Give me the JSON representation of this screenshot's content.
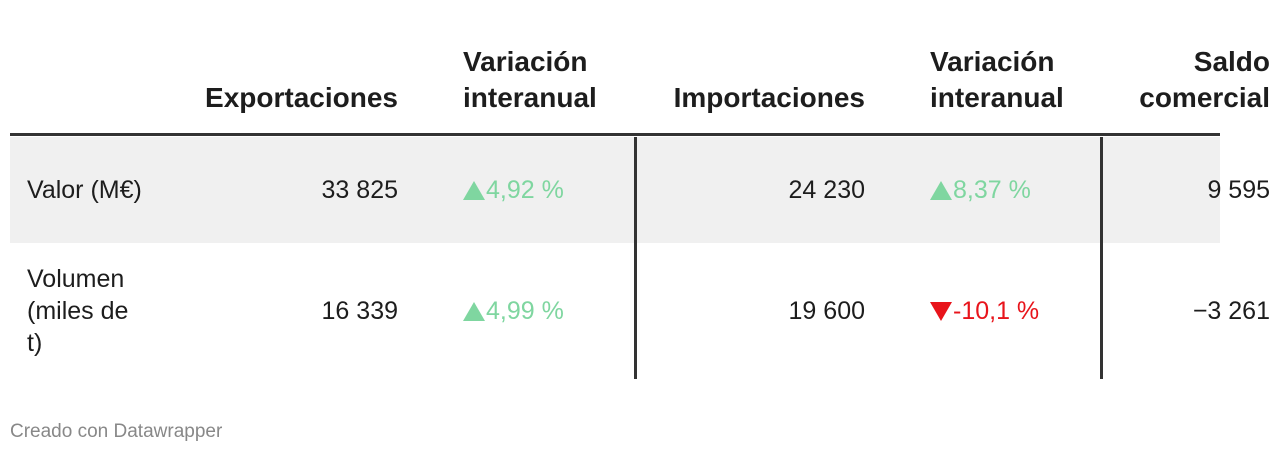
{
  "table": {
    "columns": [
      "Exportaciones",
      "Variación interanual",
      "Importaciones",
      "Variación interanual",
      "Saldo comercial"
    ],
    "rows": [
      {
        "label": "Valor (M€)",
        "cells": [
          "33 825",
          "4,92 %",
          "24 230",
          "8,37 %",
          "9 595"
        ]
      },
      {
        "label": "Volumen (miles de t)",
        "cells": [
          "16 339",
          "4,99 %",
          "19 600",
          "-10,1 %",
          "−3 261"
        ]
      }
    ]
  },
  "footer": "Creado con Datawrapper"
}
